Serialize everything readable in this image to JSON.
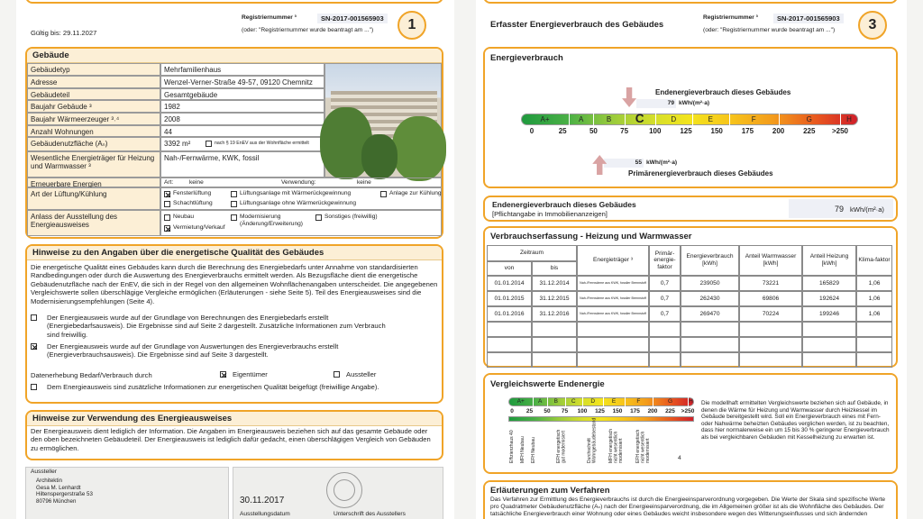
{
  "left": {
    "valid_until": "Gültig bis: 29.11.2027",
    "registration": {
      "label": "Registriernummer ³",
      "number": "SN-2017-001565903",
      "note": "(oder: \"Registriernummer wurde beantragt am ...\")"
    },
    "page": "1",
    "building": {
      "title": "Gebäude",
      "rows": [
        {
          "label": "Gebäudetyp",
          "value": "Mehrfamilienhaus"
        },
        {
          "label": "Adresse",
          "value": "Wenzel-Verner-Straße 49-57, 09120 Chemnitz"
        },
        {
          "label": "Gebäudeteil",
          "value": "Gesamtgebäude"
        },
        {
          "label": "Baujahr Gebäude ³",
          "value": "1982"
        },
        {
          "label": "Baujahr Wärmeerzeuger ³˒⁴",
          "value": "2008"
        },
        {
          "label": "Anzahl Wohnungen",
          "value": "44"
        },
        {
          "label": "Gebäudenutzfläche (Aₙ)",
          "value": "3392 m²"
        },
        {
          "label": "Wesentliche Energieträger für Heizung und Warmwasser ³",
          "value": "Nah-/Fernwärme, KWK, fossil"
        }
      ],
      "area_note": {
        "text": "nach § 19 EnEV aus der Wohnfläche ermittelt",
        "checked": false
      },
      "renewable": {
        "label": "Erneuerbare Energien",
        "art_label": "Art:",
        "art": "keine",
        "use_label": "Verwendung:",
        "use": "keine"
      },
      "ventilation": {
        "label": "Art der Lüftung/Kühlung",
        "options": [
          {
            "label": "Fensterlüftung",
            "checked": true
          },
          {
            "label": "Lüftungsanlage mit Wärmerückgewinnung",
            "checked": false
          },
          {
            "label": "Anlage zur Kühlung",
            "checked": false
          },
          {
            "label": "Schachtlüftung",
            "checked": false
          },
          {
            "label": "Lüftungsanlage ohne Wärmerückgewinnung",
            "checked": false
          }
        ]
      },
      "occasion": {
        "label": "Anlass der Ausstellung des Energieausweises",
        "options": [
          {
            "label": "Neubau",
            "checked": false
          },
          {
            "label": "Modernisierung (Änderung/Erweiterung)",
            "checked": false
          },
          {
            "label": "Sonstiges (freiwillig)",
            "checked": false
          },
          {
            "label": "Vermietung/Verkauf",
            "checked": true
          }
        ]
      }
    },
    "notes": {
      "title": "Hinweise zu den Angaben über die energetische Qualität des Gebäudes",
      "text": "Die energetische Qualität eines Gebäudes kann durch die Berechnung des Energiebedarfs unter Annahme von standardisierten Randbedingungen oder durch die Auswertung des Energieverbrauchs ermittelt werden. Als Bezugsfläche dient die energetische Gebäudenutzfläche nach der EnEV, die sich in der Regel von den allgemeinen Wohnflächenangaben unterscheidet. Die angegebenen Vergleichswerte sollen überschlägige Vergleiche ermöglichen (Erläuterungen - siehe Seite 5). Teil des Energieausweises sind die Modernisierungsempfehlungen (Seite 4).",
      "items": [
        {
          "text": "Der Energieausweis wurde auf der Grundlage von Berechnungen des Energiebedarfs erstellt (Energiebedarfsausweis). Die Ergebnisse sind auf Seite 2 dargestellt. Zusätzliche Informationen zum Verbrauch sind freiwillig.",
          "checked": false
        },
        {
          "text": "Der Energieausweis wurde auf der Grundlage von Auswertungen des Energieverbrauchs erstellt (Energieverbrauchsausweis). Die Ergebnisse sind auf Seite 3 dargestellt.",
          "checked": true
        }
      ],
      "survey": {
        "label": "Datenerhebung Bedarf/Verbrauch durch",
        "options": [
          {
            "label": "Eigentümer",
            "checked": true
          },
          {
            "label": "Aussteller",
            "checked": false
          }
        ]
      },
      "extra": {
        "text": "Dem Energieausweis sind zusätzliche Informationen zur energetischen Qualität beigefügt (freiwillige Angabe).",
        "checked": false
      }
    },
    "usage": {
      "title": "Hinweise zur Verwendung des Energieausweises",
      "text": "Der Energieausweis dient lediglich der Information. Die Angaben im Energieausweis beziehen sich auf das gesamte Gebäude oder den oben bezeichneten Gebäudeteil. Der Energieausweis ist lediglich dafür gedacht, einen überschlägigen Vergleich von Gebäuden zu ermöglichen."
    },
    "issuer": {
      "label": "Aussteller",
      "lines": [
        "Architektin",
        "Gesa M. Lenhardt",
        "Hiltenspergerstraße 53",
        "80796 München"
      ],
      "date": "30.11.2017",
      "date_label": "Ausstellungsdatum",
      "signature_label": "Unterschrift des Ausstellers"
    }
  },
  "right": {
    "title": "Erfasster Energieverbrauch des Gebäudes",
    "registration": {
      "label": "Registriernummer ³",
      "number": "SN-2017-001565903",
      "note": "(oder: \"Registriernummer wurde beantragt am ...\")"
    },
    "page": "3",
    "energy": {
      "title": "Energieverbrauch",
      "classes": [
        "A+",
        "A",
        "B",
        "C",
        "D",
        "E",
        "F",
        "G",
        "H"
      ],
      "ticks": [
        0,
        25,
        50,
        75,
        100,
        125,
        150,
        175,
        200,
        225,
        {
          "value": 250,
          "label": ">250"
        }
      ],
      "end_label": "Endenergieverbrauch dieses Gebäudes",
      "end_value": 79,
      "unit": "kWh/(m²·a)",
      "primary_label": "Primärenergieverbrauch dieses Gebäudes",
      "primary_value": 55
    },
    "end_box": {
      "label": "Endenergieverbrauch dieses Gebäudes",
      "sub": "[Pflichtangabe in Immobilienanzeigen]",
      "value": 79,
      "unit": "kWh/(m²·a)"
    },
    "consumption": {
      "title": "Verbrauchserfassung - Heizung und Warmwasser",
      "period": "Zeitraum",
      "columns": [
        "von",
        "bis",
        "Energieträger ³",
        "Primär-energie-faktor",
        "Energieverbrauch [kWh]",
        "Anteil Warmwasser [kWh]",
        "Anteil Heizung [kWh]",
        "Klima-faktor"
      ],
      "rows": [
        [
          "01.01.2014",
          "31.12.2014",
          "Nah-/Fernwärme aus KWK, fossiler Brennstoff",
          "0,7",
          239050,
          73221,
          165829,
          "1,06"
        ],
        [
          "01.01.2015",
          "31.12.2015",
          "Nah-/Fernwärme aus KWK, fossiler Brennstoff",
          "0,7",
          262430,
          69806,
          192624,
          "1,06"
        ],
        [
          "01.01.2016",
          "31.12.2016",
          "Nah-/Fernwärme aus KWK, fossiler Brennstoff",
          "0,7",
          269470,
          70224,
          199246,
          "1,06"
        ]
      ]
    },
    "comparison": {
      "title": "Vergleichswerte Endenergie",
      "classes": [
        "A+",
        "A",
        "B",
        "C",
        "D",
        "E",
        "F",
        "G",
        "H"
      ],
      "ticks": [
        0,
        25,
        50,
        75,
        100,
        125,
        150,
        175,
        200,
        225,
        {
          "value": 250,
          "label": ">250"
        }
      ],
      "references": [
        "Effizienzhaus 40",
        "MFH Neubau",
        "EFH Neubau",
        "EFH energetisch gut modernisiert",
        "Durchschnitt Wohngebäudebestand",
        "MFH energetisch nicht wesentlich modernisiert",
        "EFH energetisch nicht wesentlich modernisiert"
      ],
      "footnote": "4",
      "text": "Die modellhaft ermittelten Vergleichswerte beziehen sich auf Gebäude, in denen die Wärme für Heizung und Warmwasser durch Heizkessel im Gebäude bereitgestellt wird. Soll ein Energieverbrauch eines mit Fern- oder Nahwärme beheizten Gebäudes verglichen werden, ist zu beachten, dass hier normalerweise ein um 15 bis 30 % geringerer Energieverbrauch als bei vergleichbaren Gebäuden mit Kesselheizung zu erwarten ist."
    },
    "method": {
      "title": "Erläuterungen zum Verfahren",
      "text": "Das Verfahren zur Ermittlung des Energieverbrauchs ist durch die Energieeinsparverordnung vorgegeben. Die Werte der Skala sind spezifische Werte pro Quadratmeter Gebäudenutzfläche (Aₙ) nach der Energieeinsparverordnung, die im Allgemeinen größer ist als die Wohnfläche des Gebäudes. Der tatsächliche Energieverbrauch einer Wohnung oder eines Gebäudes weicht insbesondere wegen des Witterungseinflusses und sich ändernden"
    }
  }
}
